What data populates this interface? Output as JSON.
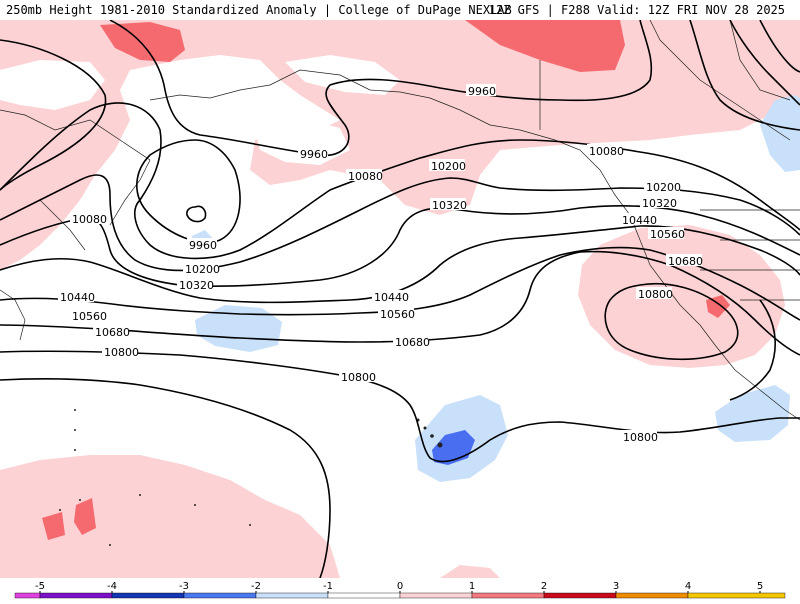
{
  "header": {
    "title_left": "250mb Height 1981-2010 Standardized Anomaly | College of DuPage NEXLAB",
    "title_right": "12Z GFS | F288 Valid: 12Z FRI NOV 28 2025"
  },
  "contour_labels": {
    "c9960": "9960",
    "c10080": "10080",
    "c10200": "10200",
    "c10320": "10320",
    "c10440": "10440",
    "c10560": "10560",
    "c10680": "10680",
    "c10800": "10800"
  },
  "colorbar": {
    "ticks": [
      "-5",
      "-4",
      "-3",
      "-2",
      "-1",
      "0",
      "1",
      "2",
      "3",
      "4",
      "5"
    ],
    "colors": [
      "#e040e0",
      "#7a10c8",
      "#1436b4",
      "#4a78f0",
      "#c8e0fa",
      "#ffffff",
      "#fcd2d4",
      "#f47a80",
      "#c80a1a",
      "#f08c00",
      "#f4c800"
    ]
  },
  "colors": {
    "positive_light": "#fcd2d4",
    "positive_mid": "#f46a6e",
    "negative_light": "#c8e0fa",
    "negative_mid": "#4a6ef0"
  }
}
